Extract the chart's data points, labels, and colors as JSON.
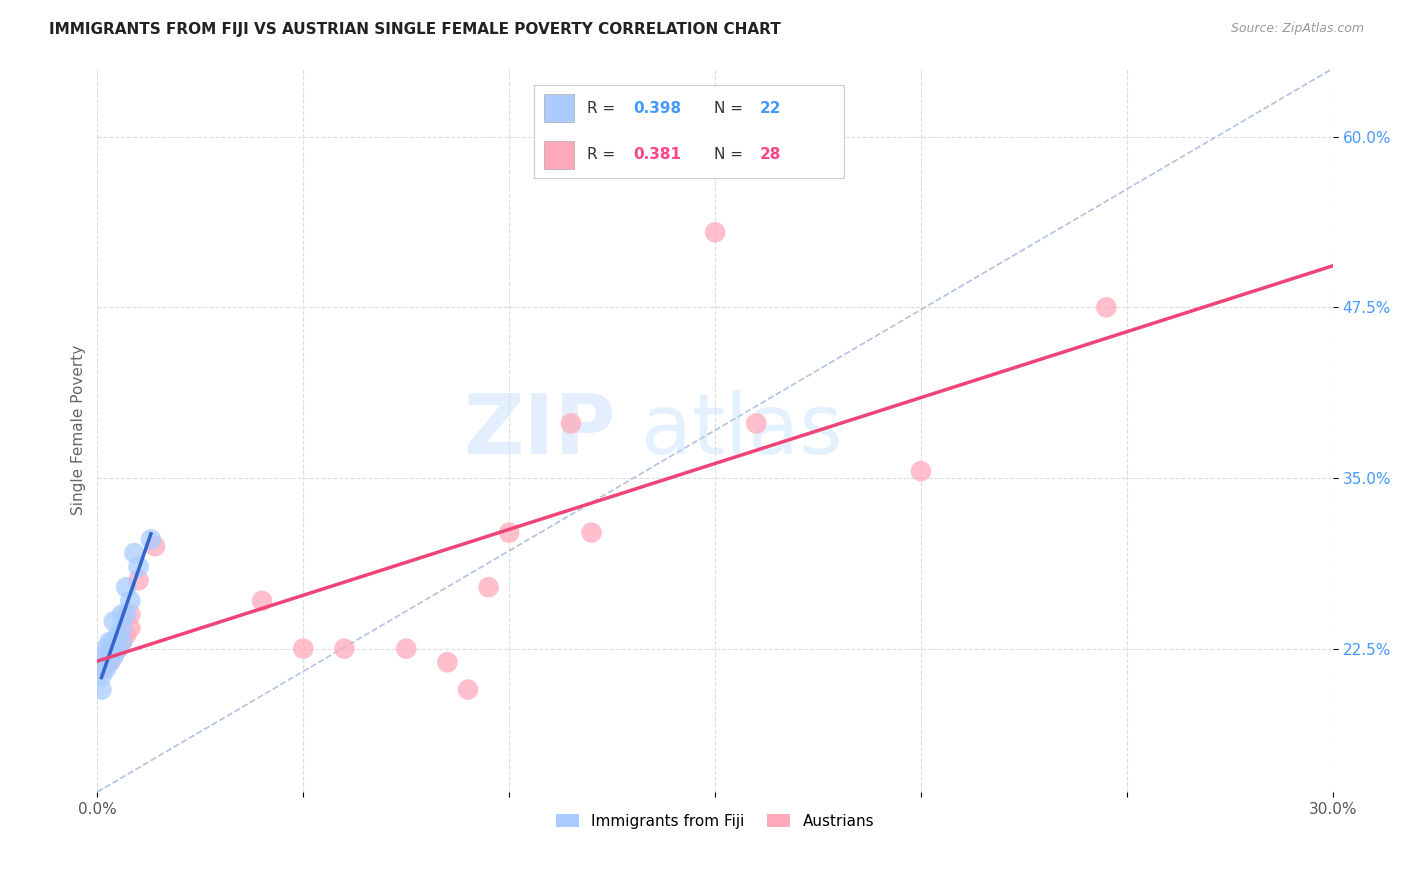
{
  "title": "IMMIGRANTS FROM FIJI VS AUSTRIAN SINGLE FEMALE POVERTY CORRELATION CHART",
  "source": "Source: ZipAtlas.com",
  "ylabel": "Single Female Poverty",
  "legend_label1": "Immigrants from Fiji",
  "legend_label2": "Austrians",
  "r1": "0.398",
  "n1": "22",
  "r2": "0.381",
  "n2": "28",
  "xlim": [
    0.0,
    0.3
  ],
  "ylim": [
    0.12,
    0.65
  ],
  "xticks": [
    0.0,
    0.05,
    0.1,
    0.15,
    0.2,
    0.25,
    0.3
  ],
  "xticklabels": [
    "0.0%",
    "",
    "",
    "",
    "",
    "",
    "30.0%"
  ],
  "yticks": [
    0.225,
    0.35,
    0.475,
    0.6
  ],
  "yticklabels": [
    "22.5%",
    "35.0%",
    "47.5%",
    "60.0%"
  ],
  "color_blue": "#aaccff",
  "color_pink": "#ffaabb",
  "trendline_blue": "#3366cc",
  "trendline_pink": "#ee4477",
  "color_blue_text": "#4499ff",
  "color_pink_text": "#ff4488",
  "watermark_zip": "ZIP",
  "watermark_atlas": "atlas",
  "grid_color": "#dddddd",
  "blue_x": [
    0.001,
    0.001,
    0.002,
    0.002,
    0.002,
    0.003,
    0.003,
    0.003,
    0.004,
    0.004,
    0.004,
    0.005,
    0.005,
    0.006,
    0.006,
    0.006,
    0.007,
    0.007,
    0.008,
    0.009,
    0.01,
    0.013
  ],
  "blue_y": [
    0.195,
    0.205,
    0.21,
    0.22,
    0.225,
    0.215,
    0.225,
    0.23,
    0.22,
    0.23,
    0.245,
    0.225,
    0.235,
    0.23,
    0.24,
    0.25,
    0.25,
    0.27,
    0.26,
    0.295,
    0.285,
    0.305
  ],
  "pink_x": [
    0.001,
    0.002,
    0.002,
    0.003,
    0.003,
    0.004,
    0.004,
    0.005,
    0.006,
    0.007,
    0.008,
    0.008,
    0.01,
    0.014,
    0.04,
    0.05,
    0.06,
    0.075,
    0.085,
    0.09,
    0.095,
    0.1,
    0.115,
    0.12,
    0.15,
    0.16,
    0.2,
    0.245
  ],
  "pink_y": [
    0.21,
    0.213,
    0.215,
    0.215,
    0.22,
    0.22,
    0.225,
    0.225,
    0.23,
    0.235,
    0.24,
    0.25,
    0.275,
    0.3,
    0.26,
    0.225,
    0.225,
    0.225,
    0.215,
    0.195,
    0.27,
    0.31,
    0.39,
    0.31,
    0.53,
    0.39,
    0.355,
    0.475
  ],
  "ref_line_x": [
    0.0,
    0.3
  ],
  "ref_line_y": [
    0.12,
    0.65
  ]
}
